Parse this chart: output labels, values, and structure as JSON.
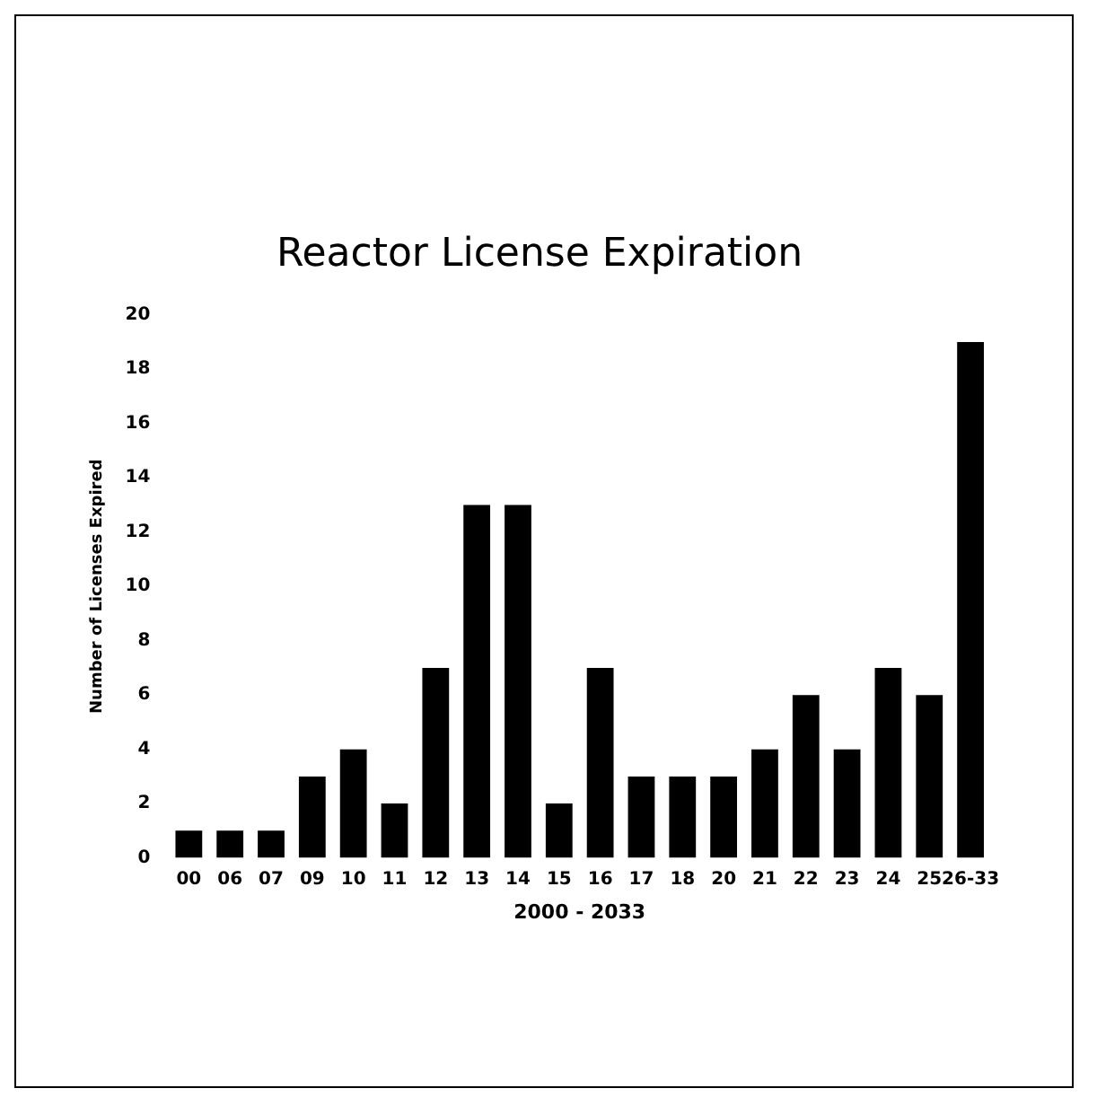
{
  "chart_data": {
    "type": "bar",
    "title": "Reactor License Expiration",
    "xlabel": "2000 - 2033",
    "ylabel": "Number of Licenses Expired",
    "categories": [
      "00",
      "06",
      "07",
      "09",
      "10",
      "11",
      "12",
      "13",
      "14",
      "15",
      "16",
      "17",
      "18",
      "20",
      "21",
      "22",
      "23",
      "24",
      "25",
      "26-33"
    ],
    "values": [
      1,
      1,
      1,
      3,
      4,
      2,
      7,
      13,
      13,
      2,
      7,
      3,
      3,
      3,
      4,
      6,
      4,
      7,
      6,
      19
    ],
    "color": "#000000",
    "ylim": [
      0,
      20
    ],
    "yticks": [
      0,
      2,
      4,
      6,
      8,
      10,
      12,
      14,
      16,
      18,
      20
    ],
    "grid": false,
    "legend": false
  }
}
